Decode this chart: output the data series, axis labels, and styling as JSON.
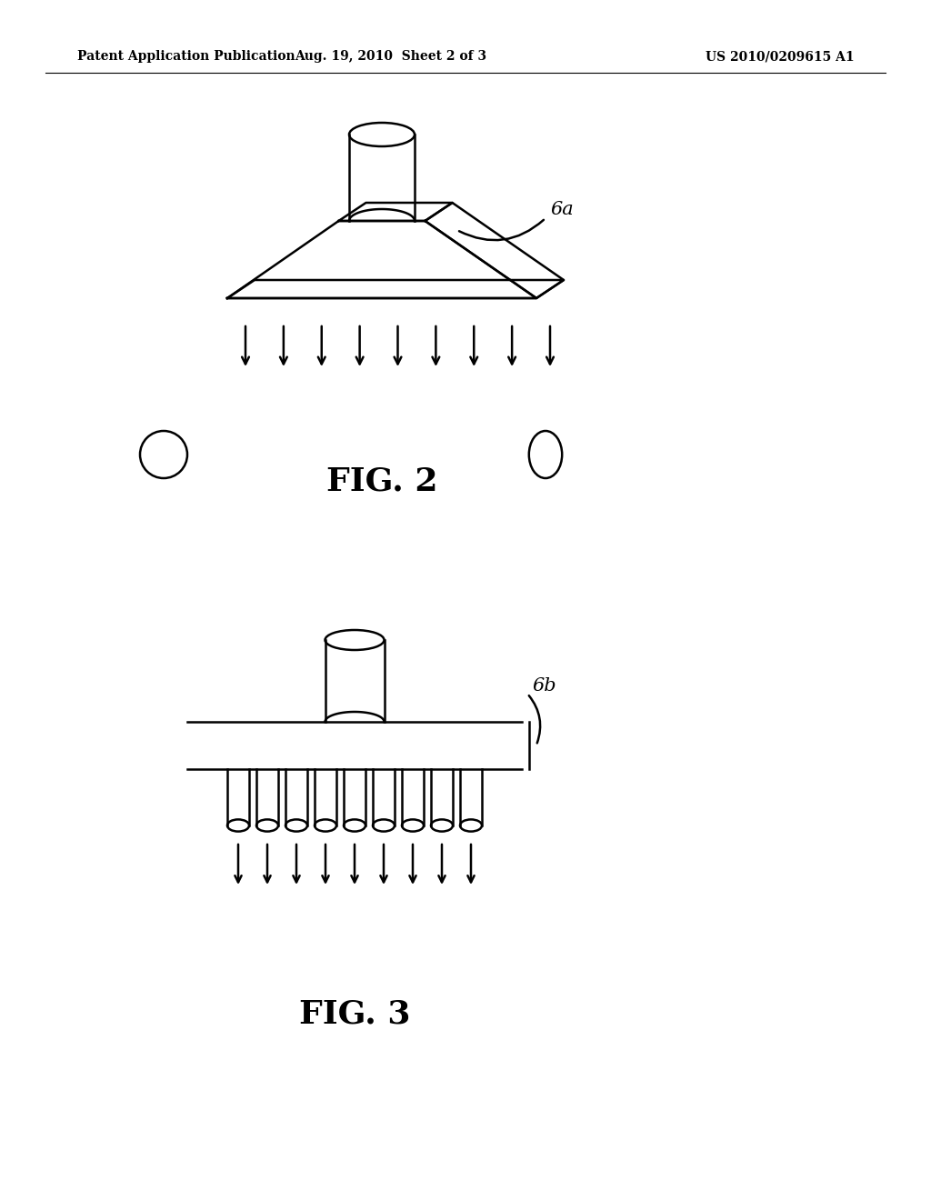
{
  "bg_color": "#ffffff",
  "line_color": "#000000",
  "header_left": "Patent Application Publication",
  "header_center": "Aug. 19, 2010  Sheet 2 of 3",
  "header_right": "US 2010/0209615 A1",
  "fig2_label": "FIG. 2",
  "fig3_label": "FIG. 3",
  "label_6a": "6a",
  "label_6b": "6b"
}
